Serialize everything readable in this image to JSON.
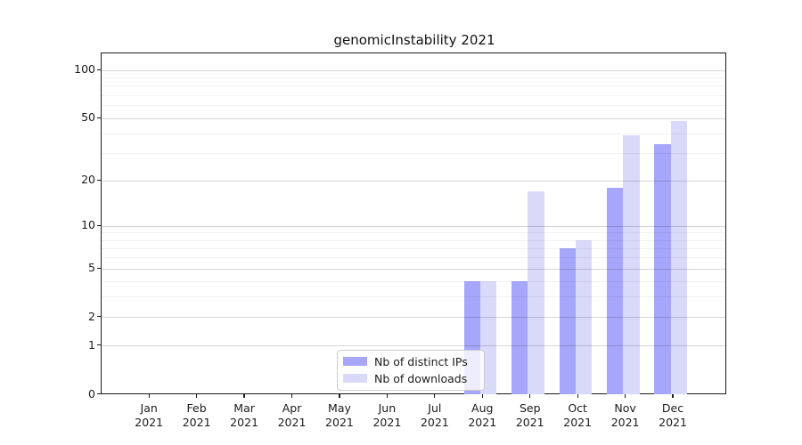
{
  "chart_data": {
    "type": "bar",
    "title": "genomicInstability 2021",
    "x_categories": [
      "Jan 2021",
      "Feb 2021",
      "Mar 2021",
      "Apr 2021",
      "May 2021",
      "Jun 2021",
      "Jul 2021",
      "Aug 2021",
      "Sep 2021",
      "Oct 2021",
      "Nov 2021",
      "Dec 2021"
    ],
    "series": [
      {
        "name": "Nb of distinct IPs",
        "color": "#a6a6fa",
        "values": [
          0,
          0,
          0,
          0,
          0,
          0,
          0,
          4,
          4,
          7,
          18,
          34
        ]
      },
      {
        "name": "Nb of downloads",
        "color": "#d9d9fa",
        "values": [
          0,
          0,
          0,
          0,
          0,
          0,
          0,
          4,
          17,
          8,
          39,
          48
        ]
      }
    ],
    "yscale": "log1p",
    "ylim": [
      0,
      126
    ],
    "yticks": [
      100,
      50,
      20,
      10,
      5,
      2,
      1,
      0
    ],
    "minor_gridlines": [
      3,
      4,
      6,
      7,
      8,
      9,
      30,
      40,
      60,
      70,
      80,
      90
    ],
    "grid": "on",
    "legend_position": "lower center"
  }
}
